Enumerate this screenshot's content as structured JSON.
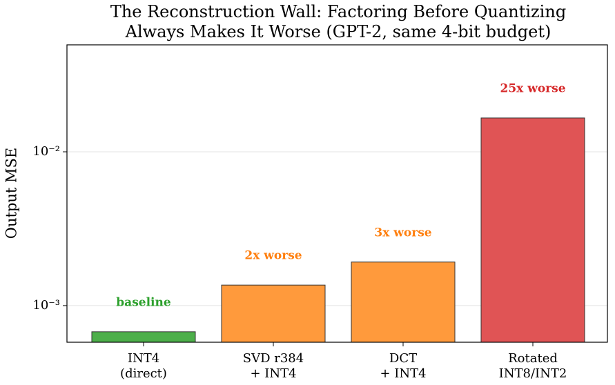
{
  "chart_data": {
    "type": "bar",
    "title": "The Reconstruction Wall: Factoring Before Quantizing\nAlways Makes It Worse (GPT-2, same 4-bit budget)",
    "y_label": "Output MSE",
    "categories": [
      "INT4\n(direct)",
      "SVD r384\n+ INT4",
      "DCT\n+ INT4",
      "Rotated\nINT8/INT2"
    ],
    "values": [
      0.000676,
      0.00136,
      0.00192,
      0.0166
    ],
    "colors": [
      "#4daf4a",
      "#ff9a3c",
      "#e05455",
      "#e05455"
    ],
    "bar_colors": [
      "#4daf4a",
      "#ff9a3c",
      "#ff9a3c",
      "#e05455"
    ],
    "annotations": [
      {
        "text": "baseline",
        "color": "#2ca02c"
      },
      {
        "text": "2x worse",
        "color": "#ff7f0e"
      },
      {
        "text": "3x worse",
        "color": "#ff7f0e"
      },
      {
        "text": "25x worse",
        "color": "#d62728"
      }
    ],
    "log_scale": true,
    "ylim": [
      0.000578,
      0.0496
    ],
    "yticks": [
      {
        "value": 0.001,
        "label": "10⁻³"
      },
      {
        "value": 0.01,
        "label": "10⁻²"
      }
    ],
    "grid": true
  }
}
